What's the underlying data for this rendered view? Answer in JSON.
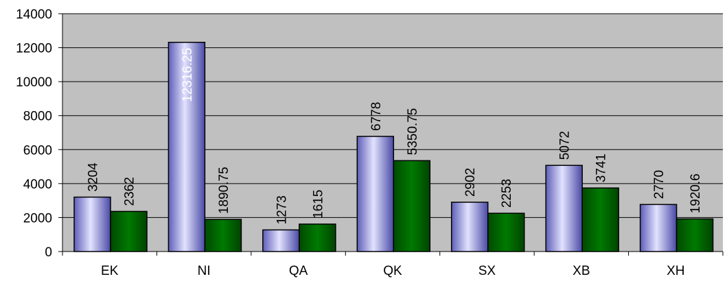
{
  "chart_data": {
    "type": "bar",
    "categories": [
      "EK",
      "NI",
      "QA",
      "QK",
      "SX",
      "XB",
      "XH"
    ],
    "series": [
      {
        "values": [
          3204,
          12316.25,
          1273,
          6778,
          2902,
          5072,
          2770
        ],
        "color": "#8f8fe8"
      },
      {
        "values": [
          2362,
          1890.75,
          1615,
          5350.75,
          2253,
          3741,
          1920.6
        ],
        "color": "#006400"
      }
    ],
    "data_labels": [
      [
        "3204",
        "12316.25",
        "1273",
        "6778",
        "2902",
        "5072",
        "2770"
      ],
      [
        "2362",
        "1890.75",
        "1615",
        "5350.75",
        "2253",
        "3741",
        "1920.6"
      ]
    ],
    "y_ticks": [
      "0",
      "2000",
      "4000",
      "6000",
      "8000",
      "10000",
      "12000",
      "14000"
    ],
    "ylim": [
      0,
      14000
    ],
    "grid": true,
    "plot_background": "#c0c0c0",
    "legend": "none"
  }
}
